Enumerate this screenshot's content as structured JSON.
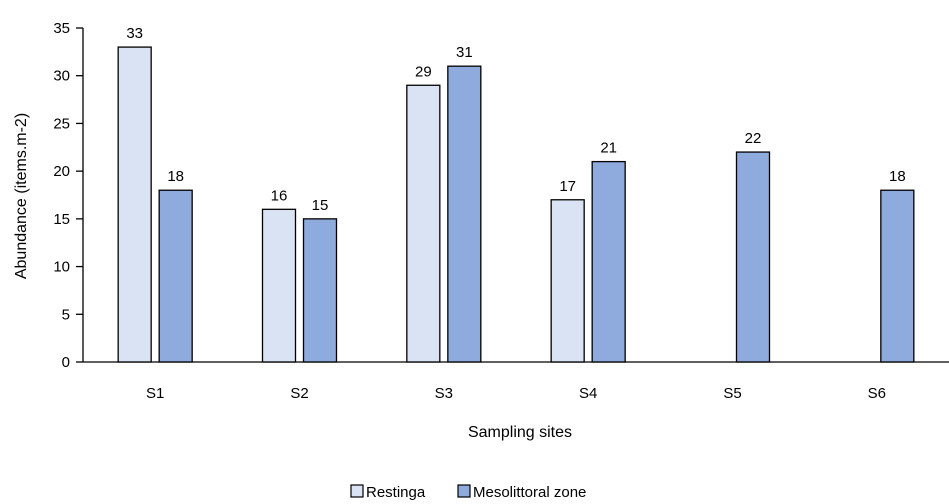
{
  "chart_data": {
    "type": "bar",
    "categories": [
      "S1",
      "S2",
      "S3",
      "S4",
      "S5",
      "S6"
    ],
    "series": [
      {
        "name": "Restinga",
        "values": [
          33,
          16,
          29,
          17,
          null,
          null
        ],
        "color": "#dae3f3"
      },
      {
        "name": "Mesolittoral zone",
        "values": [
          18,
          15,
          31,
          21,
          22,
          18
        ],
        "color": "#8faadc"
      }
    ],
    "title": "",
    "xlabel": "Sampling sites",
    "ylabel": "Abundance (items.m-2)",
    "ylim": [
      0,
      35
    ],
    "yticks": [
      0,
      5,
      10,
      15,
      20,
      25,
      30,
      35
    ],
    "grid": false,
    "legend_position": "bottom",
    "data_labels": true
  }
}
